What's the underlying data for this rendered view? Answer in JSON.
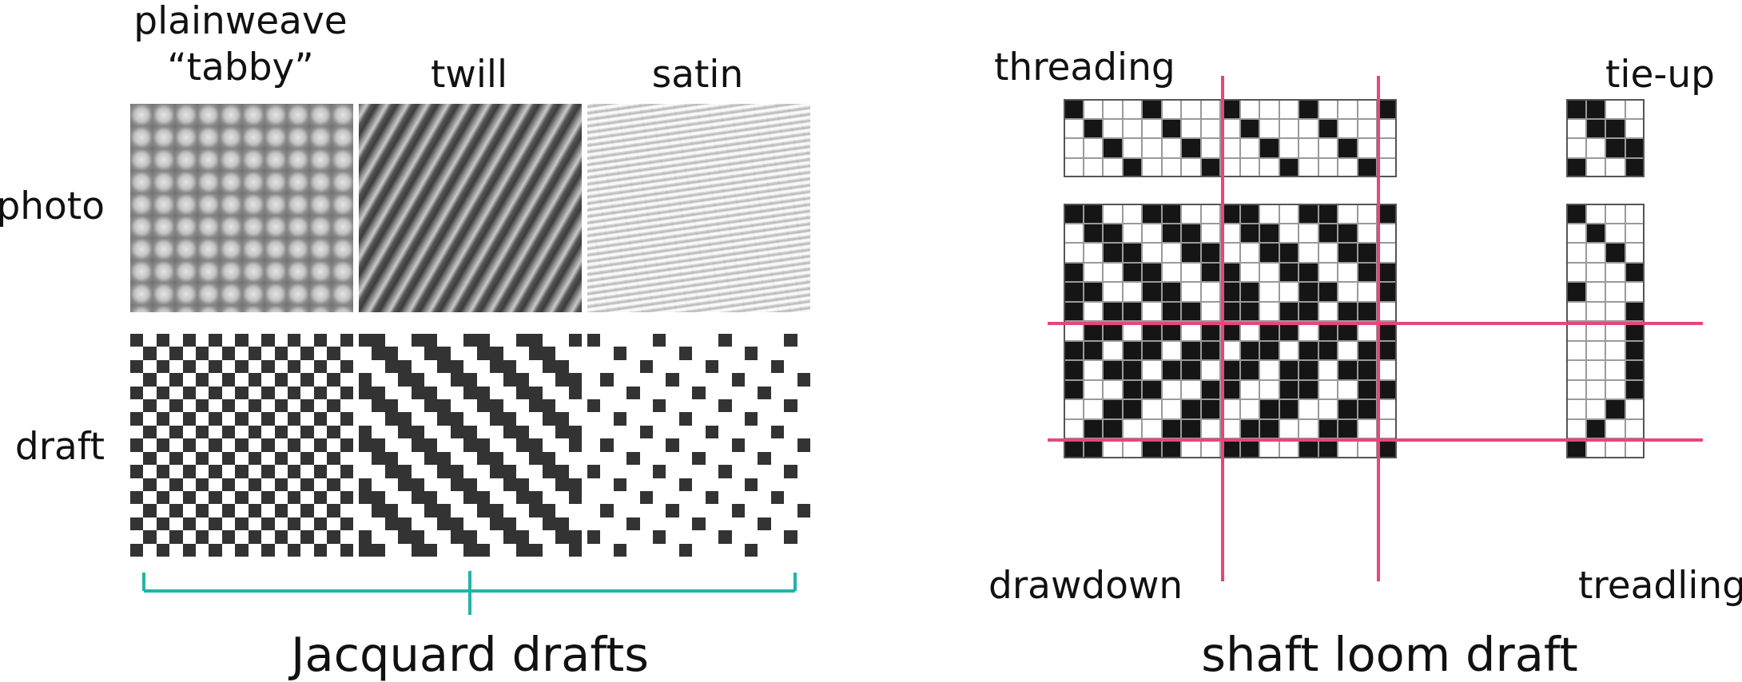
{
  "left_panel": {
    "columns": [
      {
        "label_line1": "plainweave",
        "label_line2": "“tabby”"
      },
      {
        "label_line1": "twill"
      },
      {
        "label_line1": "satin"
      }
    ],
    "rows": [
      "photo",
      "draft"
    ],
    "bracket_label": "Jacquard drafts",
    "bracket_color": "#22b3a8"
  },
  "right_panel": {
    "labels": {
      "threading": "threading",
      "tie_up": "tie-up",
      "drawdown": "drawdown",
      "treadling": "treadling"
    },
    "title": "shaft loom draft",
    "divider_color": "#e8457a"
  },
  "colors": {
    "draft_ink": "#333333",
    "drawdown_ink": "#151515",
    "grid_line": "#9a9a9a"
  }
}
